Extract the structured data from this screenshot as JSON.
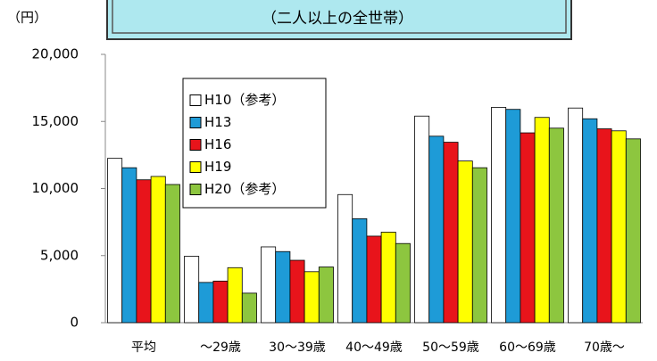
{
  "chart_data": {
    "type": "bar",
    "subtitle": "（二人以上の全世帯）",
    "y_label": "（円）",
    "categories": [
      "平均",
      "～29歳",
      "30～39歳",
      "40～49歳",
      "50～59歳",
      "60～69歳",
      "70歳～"
    ],
    "series": [
      {
        "name": "H10（参考）",
        "color": "#ffffff",
        "values": [
          12250,
          4950,
          5650,
          9550,
          15400,
          16050,
          16000
        ]
      },
      {
        "name": "H13",
        "color": "#1e9bd7",
        "values": [
          11550,
          3000,
          5300,
          7750,
          13900,
          15900,
          15200
        ]
      },
      {
        "name": "H16",
        "color": "#e8141b",
        "values": [
          10650,
          3100,
          4650,
          6450,
          13450,
          14150,
          14450
        ]
      },
      {
        "name": "H19",
        "color": "#ffff00",
        "values": [
          10900,
          4100,
          3800,
          6750,
          12050,
          15300,
          14300
        ]
      },
      {
        "name": "H20（参考）",
        "color": "#8dc63f",
        "values": [
          10300,
          2200,
          4150,
          5900,
          11550,
          14500,
          13700
        ]
      }
    ],
    "ylim": [
      0,
      20000
    ],
    "yticks": [
      0,
      {
        "value": 5000,
        "label": "5,000"
      },
      {
        "value": 10000,
        "label": "10,000"
      },
      {
        "value": 15000,
        "label": "15,000"
      },
      {
        "value": 20000,
        "label": "20,000"
      }
    ],
    "legend": "upper-left"
  }
}
